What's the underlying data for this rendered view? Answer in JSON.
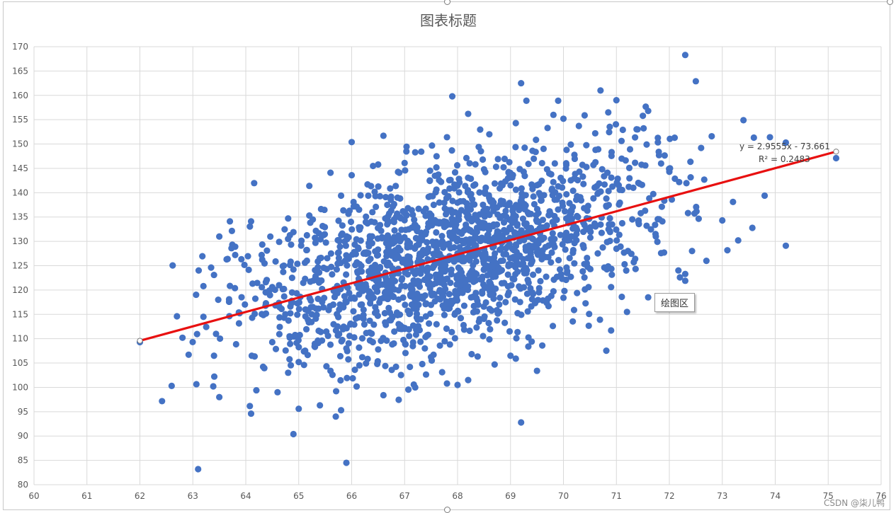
{
  "tooltip": "绘图区",
  "watermark": "CSDN @柒儿鸭",
  "colors": {
    "points": "#4472c4",
    "trendline": "#e81010",
    "grid": "#d9d9d9",
    "axis_text": "#595959",
    "title": "#595959"
  },
  "chart_data": {
    "type": "scatter",
    "title": "图表标题",
    "xlabel": "",
    "ylabel": "",
    "xlim": [
      60,
      76
    ],
    "ylim": [
      80,
      170
    ],
    "x_ticks": [
      60,
      61,
      62,
      63,
      64,
      65,
      66,
      67,
      68,
      69,
      70,
      71,
      72,
      73,
      74,
      75,
      76
    ],
    "y_ticks": [
      80,
      85,
      90,
      95,
      100,
      105,
      110,
      115,
      120,
      125,
      130,
      135,
      140,
      145,
      150,
      155,
      160,
      165,
      170
    ],
    "grid": true,
    "legend": "none",
    "trendline": {
      "type": "linear",
      "slope": 2.9555,
      "intercept": -73.661,
      "x_range": [
        62.0,
        75.15
      ],
      "equation_label": "y = 2.9555x - 73.661",
      "r2_label": "R² = 0.2483"
    },
    "series": [
      {
        "color": "#4472c4",
        "points": [
          [
            62.0,
            109.3
          ],
          [
            62.7,
            114.6
          ],
          [
            62.6,
            100.3
          ],
          [
            63.1,
            83.2
          ],
          [
            63.2,
            114.5
          ],
          [
            63.2,
            120.8
          ],
          [
            63.4,
            106.5
          ],
          [
            63.4,
            123.1
          ],
          [
            63.5,
            98.0
          ],
          [
            63.5,
            131.0
          ],
          [
            63.7,
            134.1
          ],
          [
            63.8,
            128.9
          ],
          [
            63.8,
            127.2
          ],
          [
            64.1,
            94.6
          ],
          [
            64.1,
            134.1
          ],
          [
            64.2,
            99.4
          ],
          [
            64.3,
            127.2
          ],
          [
            64.4,
            128.1
          ],
          [
            64.5,
            120.6
          ],
          [
            64.5,
            109.3
          ],
          [
            64.6,
            99.0
          ],
          [
            64.7,
            124.9
          ],
          [
            64.8,
            103.0
          ],
          [
            64.8,
            134.7
          ],
          [
            64.9,
            90.4
          ],
          [
            64.9,
            131.9
          ],
          [
            65.0,
            95.6
          ],
          [
            65.0,
            105.2
          ],
          [
            65.1,
            104.6
          ],
          [
            65.2,
            141.4
          ],
          [
            65.2,
            135.3
          ],
          [
            65.3,
            108.4
          ],
          [
            65.4,
            96.3
          ],
          [
            65.6,
            144.1
          ],
          [
            65.6,
            103.4
          ],
          [
            65.7,
            94.0
          ],
          [
            65.8,
            95.3
          ],
          [
            65.8,
            139.4
          ],
          [
            65.9,
            108.0
          ],
          [
            65.9,
            84.5
          ],
          [
            66.0,
            150.4
          ],
          [
            66.0,
            143.6
          ],
          [
            66.2,
            106.2
          ],
          [
            66.3,
            141.7
          ],
          [
            66.4,
            109.3
          ],
          [
            66.5,
            145.8
          ],
          [
            66.6,
            151.7
          ],
          [
            66.6,
            98.4
          ],
          [
            66.8,
            123.3
          ],
          [
            66.9,
            144.1
          ],
          [
            67.0,
            146.1
          ],
          [
            67.1,
            104.2
          ],
          [
            67.2,
            148.3
          ],
          [
            67.2,
            100.0
          ],
          [
            67.4,
            136.7
          ],
          [
            67.5,
            134.4
          ],
          [
            67.6,
            145.2
          ],
          [
            67.8,
            151.4
          ],
          [
            67.8,
            100.8
          ],
          [
            67.9,
            159.8
          ],
          [
            68.0,
            100.5
          ],
          [
            68.2,
            101.5
          ],
          [
            68.2,
            156.2
          ],
          [
            68.4,
            149.4
          ],
          [
            68.5,
            144.8
          ],
          [
            68.6,
            152.0
          ],
          [
            68.7,
            104.7
          ],
          [
            68.8,
            118.4
          ],
          [
            69.0,
            106.5
          ],
          [
            69.1,
            105.9
          ],
          [
            69.1,
            154.3
          ],
          [
            69.2,
            162.5
          ],
          [
            69.2,
            92.8
          ],
          [
            69.3,
            158.9
          ],
          [
            69.4,
            109.4
          ],
          [
            69.5,
            103.4
          ],
          [
            69.6,
            108.6
          ],
          [
            69.7,
            153.3
          ],
          [
            69.8,
            112.6
          ],
          [
            69.9,
            158.9
          ],
          [
            70.0,
            155.2
          ],
          [
            70.0,
            118.4
          ],
          [
            70.2,
            115.9
          ],
          [
            70.3,
            144.3
          ],
          [
            70.4,
            155.9
          ],
          [
            70.6,
            152.2
          ],
          [
            70.7,
            161.0
          ],
          [
            70.9,
            111.7
          ],
          [
            70.9,
            120.6
          ],
          [
            71.0,
            159.0
          ],
          [
            71.1,
            147.0
          ],
          [
            71.2,
            115.5
          ],
          [
            71.4,
            153.0
          ],
          [
            71.5,
            155.8
          ],
          [
            71.6,
            118.5
          ],
          [
            71.6,
            156.8
          ],
          [
            71.8,
            148.4
          ],
          [
            71.9,
            127.7
          ],
          [
            72.0,
            144.3
          ],
          [
            72.1,
            151.3
          ],
          [
            72.2,
            122.6
          ],
          [
            72.3,
            168.3
          ],
          [
            72.3,
            123.3
          ],
          [
            72.3,
            121.9
          ],
          [
            72.5,
            162.9
          ],
          [
            72.6,
            149.2
          ],
          [
            72.7,
            126.0
          ],
          [
            72.8,
            151.6
          ],
          [
            73.0,
            134.3
          ],
          [
            73.3,
            130.2
          ],
          [
            73.4,
            154.9
          ],
          [
            73.8,
            139.4
          ],
          [
            73.9,
            151.4
          ],
          [
            74.2,
            129.1
          ],
          [
            74.2,
            150.3
          ],
          [
            75.15,
            147.1
          ]
        ]
      }
    ]
  }
}
